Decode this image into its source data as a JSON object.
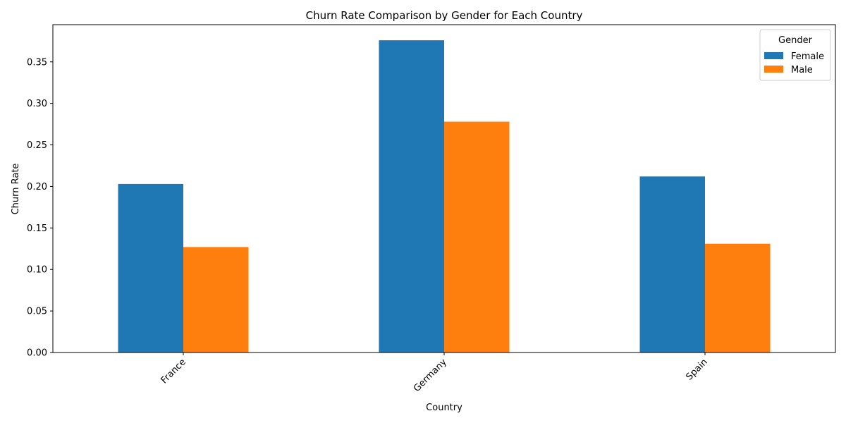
{
  "chart_data": {
    "type": "bar",
    "title": "Churn Rate Comparison by Gender for Each Country",
    "xlabel": "Country",
    "ylabel": "Churn Rate",
    "categories": [
      "France",
      "Germany",
      "Spain"
    ],
    "series": [
      {
        "name": "Female",
        "color": "#1f77b4",
        "values": [
          0.203,
          0.376,
          0.212
        ]
      },
      {
        "name": "Male",
        "color": "#ff7f0e",
        "values": [
          0.127,
          0.278,
          0.131
        ]
      }
    ],
    "ylim": [
      0,
      0.3948
    ],
    "yticks": [
      "0.00",
      "0.05",
      "0.10",
      "0.15",
      "0.20",
      "0.25",
      "0.30",
      "0.35"
    ],
    "legend": {
      "title": "Gender",
      "placement": "top-right"
    },
    "grid": false
  }
}
